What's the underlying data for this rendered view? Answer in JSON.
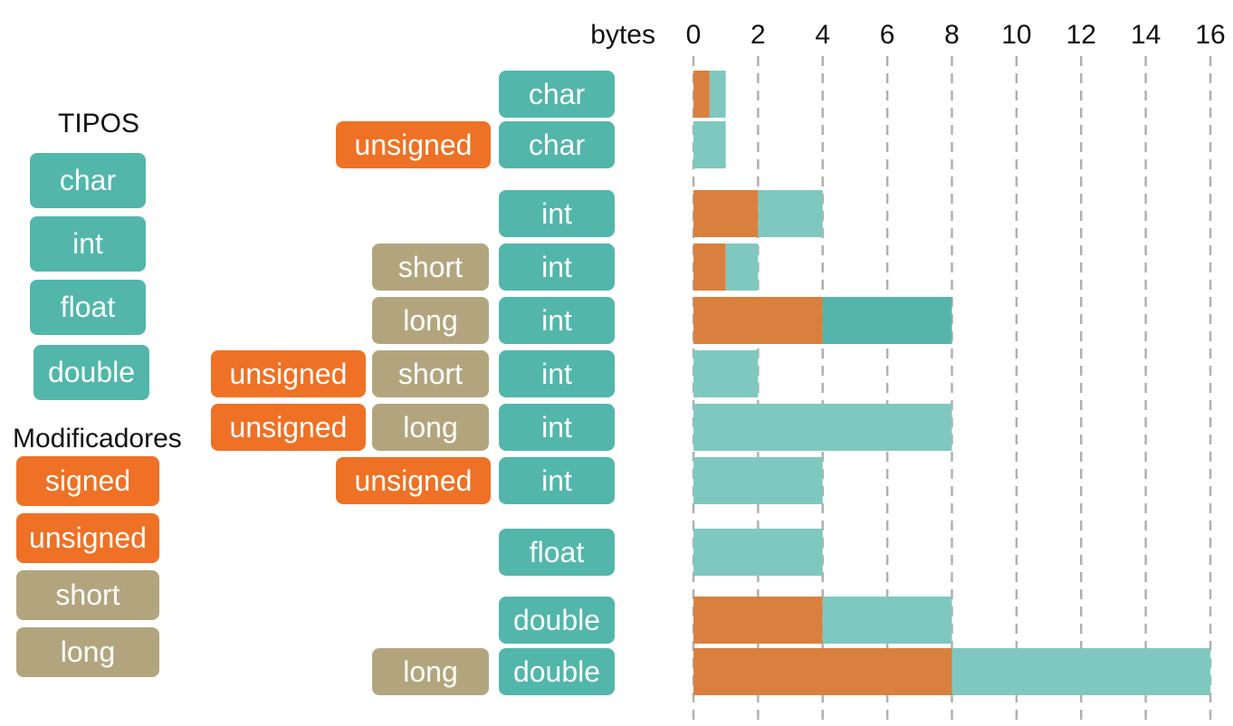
{
  "legend": {
    "tipos_title": "TIPOS",
    "tipos": [
      "char",
      "int",
      "float",
      "double"
    ],
    "modificadores_title": "Modificadores",
    "modificadores": [
      "signed",
      "unsigned",
      "short",
      "long"
    ]
  },
  "colors": {
    "type_pill": "#52b6ab",
    "signed_pill": "#ee7125",
    "size_modifier_pill": "#b2a57e",
    "bar_signed": "#d9803f",
    "bar_unsigned": "#7fc8bf",
    "bar_long_int_right": "#55b4aa",
    "grid": "#b0b0b0"
  },
  "chart_data": {
    "type": "bar",
    "orientation": "horizontal",
    "stacked": true,
    "x_axis_label": "bytes",
    "x_ticks": [
      0,
      2,
      4,
      6,
      8,
      10,
      12,
      14,
      16
    ],
    "xlim": [
      0,
      16
    ],
    "grid": "vertical dashed",
    "rows": [
      {
        "labels": [
          {
            "text": "char",
            "kind": "type"
          }
        ],
        "segments": [
          {
            "start": 0,
            "end": 0.5,
            "color": "bar_signed"
          },
          {
            "start": 0.5,
            "end": 1,
            "color": "bar_unsigned"
          }
        ]
      },
      {
        "labels": [
          {
            "text": "unsigned",
            "kind": "signed"
          },
          {
            "text": "char",
            "kind": "type"
          }
        ],
        "segments": [
          {
            "start": 0,
            "end": 1,
            "color": "bar_unsigned"
          }
        ]
      },
      {
        "labels": [
          {
            "text": "int",
            "kind": "type"
          }
        ],
        "segments": [
          {
            "start": 0,
            "end": 2,
            "color": "bar_signed"
          },
          {
            "start": 2,
            "end": 4,
            "color": "bar_unsigned"
          }
        ]
      },
      {
        "labels": [
          {
            "text": "short",
            "kind": "size"
          },
          {
            "text": "int",
            "kind": "type"
          }
        ],
        "segments": [
          {
            "start": 0,
            "end": 1,
            "color": "bar_signed"
          },
          {
            "start": 1,
            "end": 2,
            "color": "bar_unsigned"
          }
        ]
      },
      {
        "labels": [
          {
            "text": "long",
            "kind": "size"
          },
          {
            "text": "int",
            "kind": "type"
          }
        ],
        "segments": [
          {
            "start": 0,
            "end": 4,
            "color": "bar_signed"
          },
          {
            "start": 4,
            "end": 8,
            "color": "bar_long_int_right"
          }
        ]
      },
      {
        "labels": [
          {
            "text": "unsigned",
            "kind": "signed"
          },
          {
            "text": "short",
            "kind": "size"
          },
          {
            "text": "int",
            "kind": "type"
          }
        ],
        "segments": [
          {
            "start": 0,
            "end": 2,
            "color": "bar_unsigned"
          }
        ]
      },
      {
        "labels": [
          {
            "text": "unsigned",
            "kind": "signed"
          },
          {
            "text": "long",
            "kind": "size"
          },
          {
            "text": "int",
            "kind": "type"
          }
        ],
        "segments": [
          {
            "start": 0,
            "end": 8,
            "color": "bar_unsigned"
          }
        ]
      },
      {
        "labels": [
          {
            "text": "unsigned",
            "kind": "signed"
          },
          {
            "text": "int",
            "kind": "type"
          }
        ],
        "segments": [
          {
            "start": 0,
            "end": 4,
            "color": "bar_unsigned"
          }
        ]
      },
      {
        "labels": [
          {
            "text": "float",
            "kind": "type"
          }
        ],
        "segments": [
          {
            "start": 0,
            "end": 4,
            "color": "bar_unsigned"
          }
        ]
      },
      {
        "labels": [
          {
            "text": "double",
            "kind": "type"
          }
        ],
        "segments": [
          {
            "start": 0,
            "end": 4,
            "color": "bar_signed"
          },
          {
            "start": 4,
            "end": 8,
            "color": "bar_unsigned"
          }
        ]
      },
      {
        "labels": [
          {
            "text": "long",
            "kind": "size"
          },
          {
            "text": "double",
            "kind": "type"
          }
        ],
        "segments": [
          {
            "start": 0,
            "end": 8,
            "color": "bar_signed"
          },
          {
            "start": 8,
            "end": 16,
            "color": "bar_unsigned"
          }
        ]
      }
    ]
  }
}
